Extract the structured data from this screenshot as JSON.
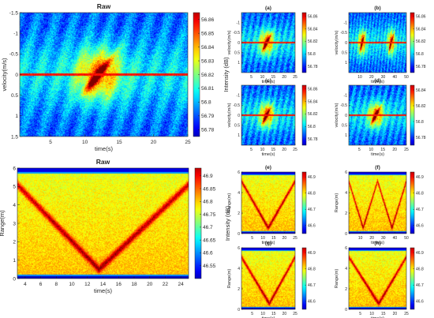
{
  "chart_data": [
    {
      "type": "heatmap",
      "title": "Raw",
      "xlabel": "time(s)",
      "ylabel": "velocity(m/s)",
      "xlim": [
        0.5,
        25
      ],
      "ylim": [
        -1.5,
        1.5
      ],
      "y_reversed": true,
      "x_ticks": [
        5,
        10,
        15,
        20,
        25
      ],
      "y_ticks": [
        "-1.5",
        "-1",
        "-0.5",
        "0",
        "0.5",
        "1",
        "1.5"
      ],
      "colorbar_label": "Intensity (dB)",
      "colorbar_ticks": [
        "56.78",
        "56.79",
        "56.8",
        "56.81",
        "56.82",
        "56.83",
        "56.84",
        "56.85",
        "56.86"
      ],
      "colorbar_range": [
        56.775,
        56.865
      ],
      "pattern": "velocity_sweep",
      "features": {
        "zero_velocity_line": 0,
        "peak_time": 12,
        "peak_velocity_range": [
          -0.5,
          0.5
        ]
      }
    },
    {
      "type": "heatmap",
      "title": "(a)",
      "xlabel": "time(s)",
      "ylabel": "velocity(m/s)",
      "xlim": [
        0.5,
        25
      ],
      "ylim": [
        -1.5,
        1.5
      ],
      "x_ticks": [
        5,
        10,
        15,
        20,
        25
      ],
      "y_ticks": [
        "-1",
        "-0.5",
        "0",
        "0.5",
        "1"
      ],
      "colorbar_ticks": [
        "56.78",
        "56.8",
        "56.82",
        "56.84",
        "56.86"
      ],
      "pattern": "velocity_sweep",
      "features": {
        "peak_time": 12
      }
    },
    {
      "type": "heatmap",
      "title": "(b)",
      "xlabel": "time(s)",
      "ylabel": "velocity(m/s)",
      "xlim": [
        0.5,
        50
      ],
      "ylim": [
        -1.5,
        1.5
      ],
      "x_ticks": [
        10,
        20,
        30,
        40,
        50
      ],
      "y_ticks": [
        "-1",
        "-0.5",
        "0",
        "0.5",
        "1"
      ],
      "colorbar_ticks": [
        "56.78",
        "56.8",
        "56.82",
        "56.84",
        "56.86"
      ],
      "pattern": "velocity_sweep",
      "features": {
        "peak_times": [
          12,
          37
        ]
      }
    },
    {
      "type": "heatmap",
      "title": "(c)",
      "xlabel": "time(s)",
      "ylabel": "velocity(m/s)",
      "xlim": [
        0.5,
        25
      ],
      "ylim": [
        -1.5,
        1.5
      ],
      "x_ticks": [
        5,
        10,
        15,
        20,
        25
      ],
      "y_ticks": [
        "-1",
        "-0.5",
        "0",
        "0.5",
        "1"
      ],
      "colorbar_ticks": [
        "56.78",
        "56.8",
        "56.82",
        "56.84",
        "56.86"
      ],
      "pattern": "velocity_sweep",
      "features": {
        "peak_time": 12
      }
    },
    {
      "type": "heatmap",
      "title": "(d)",
      "xlabel": "time(s)",
      "ylabel": "velocity(m/s)",
      "xlim": [
        0.5,
        25
      ],
      "ylim": [
        -1.5,
        1.5
      ],
      "x_ticks": [
        5,
        10,
        15,
        20,
        25
      ],
      "y_ticks": [
        "-1",
        "-0.5",
        "0",
        "0.5",
        "1"
      ],
      "colorbar_ticks": [
        "56.78",
        "56.8",
        "56.82",
        "56.84"
      ],
      "pattern": "velocity_sweep",
      "features": {
        "peak_time": 12
      }
    },
    {
      "type": "heatmap",
      "title": "Raw",
      "xlabel": "time(s)",
      "ylabel": "Range(m)",
      "xlim": [
        3,
        25
      ],
      "ylim": [
        0,
        6
      ],
      "x_ticks": [
        4,
        6,
        8,
        10,
        12,
        14,
        16,
        18,
        20,
        22,
        24
      ],
      "y_ticks": [
        0,
        1,
        2,
        3,
        4,
        5,
        6
      ],
      "colorbar_label": "Intensity (dB)",
      "colorbar_ticks": [
        "46.55",
        "46.6",
        "46.65",
        "46.7",
        "46.75",
        "46.8",
        "46.85",
        "46.9"
      ],
      "colorbar_range": [
        46.5,
        46.93
      ],
      "pattern": "range_v",
      "features": {
        "vertex_time": 13.5,
        "vertex_range": 0.5,
        "left_end": [
          3,
          5.2
        ],
        "right_end": [
          25,
          5.0
        ]
      }
    },
    {
      "type": "heatmap",
      "title": "(e)",
      "xlabel": "time(s)",
      "ylabel": "Range(m)",
      "xlim": [
        0,
        25
      ],
      "ylim": [
        0,
        6
      ],
      "x_ticks": [
        5,
        10,
        15,
        20,
        25
      ],
      "y_ticks": [
        0,
        2,
        4,
        6
      ],
      "colorbar_ticks": [
        "46.6",
        "46.7",
        "46.8",
        "46.9"
      ],
      "pattern": "range_v",
      "features": {
        "vertex_times": [
          12.5
        ]
      }
    },
    {
      "type": "heatmap",
      "title": "(f)",
      "xlabel": "time(s)",
      "ylabel": "Range(m)",
      "xlim": [
        0,
        50
      ],
      "ylim": [
        0,
        6
      ],
      "x_ticks": [
        10,
        20,
        30,
        40,
        50
      ],
      "y_ticks": [
        0,
        2,
        4,
        6
      ],
      "colorbar_ticks": [
        "46.6",
        "46.7",
        "46.8",
        "46.9"
      ],
      "pattern": "range_v",
      "features": {
        "vertex_times": [
          12.5,
          37.5
        ]
      }
    },
    {
      "type": "heatmap",
      "title": "(g)",
      "xlabel": "time(s)",
      "ylabel": "Range(m)",
      "xlim": [
        0,
        25
      ],
      "ylim": [
        0,
        6
      ],
      "x_ticks": [
        5,
        10,
        15,
        20,
        25
      ],
      "y_ticks": [
        0,
        2,
        4,
        6
      ],
      "colorbar_ticks": [
        "46.6",
        "46.7",
        "46.8",
        "46.9"
      ],
      "pattern": "range_v",
      "features": {
        "vertex_times": [
          13
        ]
      }
    },
    {
      "type": "heatmap",
      "title": "(h)",
      "xlabel": "time(s)",
      "ylabel": "Range(m)",
      "xlim": [
        0,
        25
      ],
      "ylim": [
        0,
        6
      ],
      "x_ticks": [
        5,
        10,
        15,
        20,
        25
      ],
      "y_ticks": [
        0,
        2,
        4,
        6
      ],
      "colorbar_ticks": [
        "46.6",
        "46.7",
        "46.8",
        "46.9"
      ],
      "pattern": "range_v",
      "features": {
        "vertex_times": [
          13
        ]
      }
    }
  ]
}
